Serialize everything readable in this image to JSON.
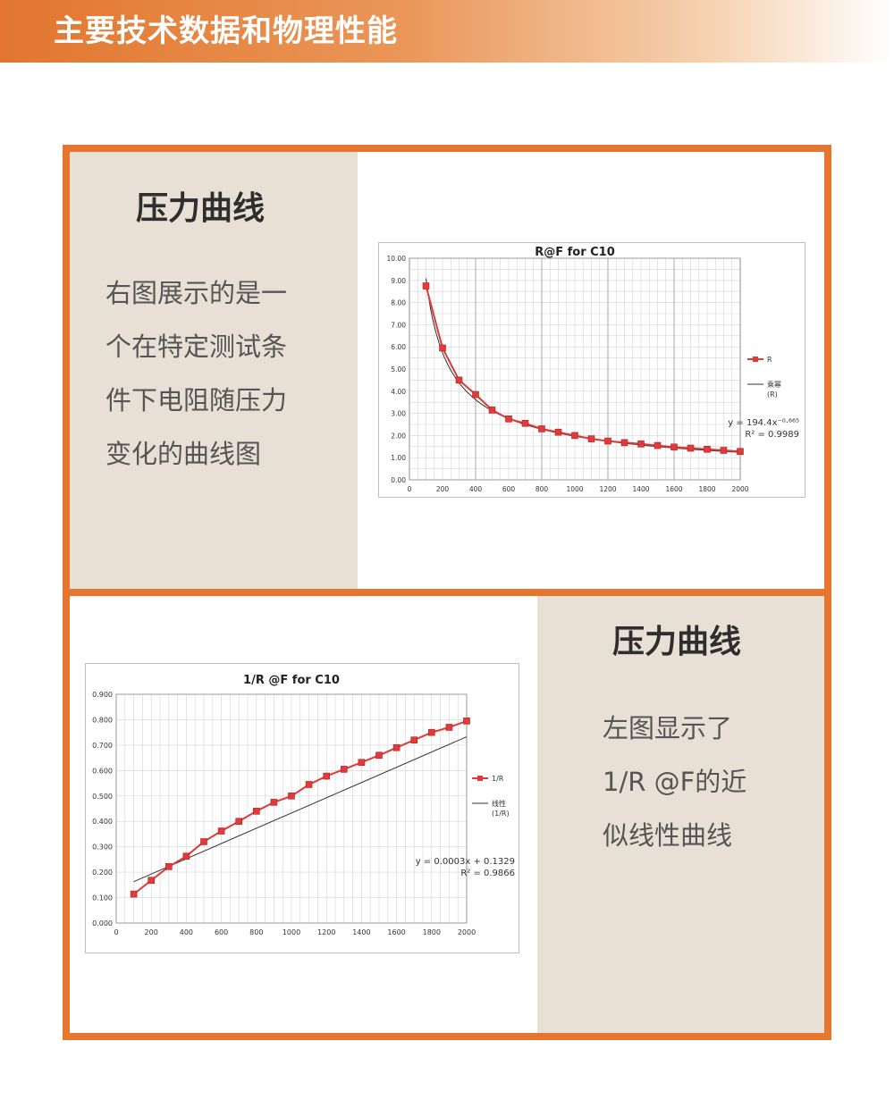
{
  "header": {
    "title": "主要技术数据和物理性能"
  },
  "section1": {
    "title": "压力曲线",
    "lines": [
      "右图展示的是一",
      "个在特定测试条",
      "件下电阻随压力",
      "变化的曲线图"
    ]
  },
  "section2": {
    "title": "压力曲线",
    "lines": [
      "左图显示了",
      "1/R @F的近",
      "似线性曲线"
    ]
  },
  "colors": {
    "accent": "#e6762e",
    "panel": "#e8e0d5",
    "series": "#e03a3a"
  },
  "chart_data": [
    {
      "type": "line",
      "title": "R@F  for C10",
      "x": [
        100,
        200,
        300,
        400,
        500,
        600,
        700,
        800,
        900,
        1000,
        1100,
        1200,
        1300,
        1400,
        1500,
        1600,
        1700,
        1800,
        1900,
        2000
      ],
      "series": [
        {
          "name": "R",
          "values": [
            8.75,
            5.95,
            4.5,
            3.85,
            3.15,
            2.75,
            2.55,
            2.3,
            2.15,
            2.0,
            1.85,
            1.75,
            1.68,
            1.62,
            1.55,
            1.48,
            1.43,
            1.38,
            1.33,
            1.28
          ]
        },
        {
          "name": "乘幂 (R)",
          "type": "power",
          "a": 194.4,
          "b": -0.665
        }
      ],
      "trendline_label": [
        "y = 194.4x⁻⁰·⁶⁶⁵",
        "R² = 0.9989"
      ],
      "xlim": [
        0,
        2000
      ],
      "ylim": [
        0,
        10
      ],
      "xticks": [
        "0",
        "200",
        "400",
        "600",
        "800",
        "1000",
        "1200",
        "1400",
        "1600",
        "1800",
        "2000"
      ],
      "yticks": [
        "0.00",
        "1.00",
        "2.00",
        "3.00",
        "4.00",
        "5.00",
        "6.00",
        "7.00",
        "8.00",
        "9.00",
        "10.00"
      ],
      "grid": true,
      "legend": "right"
    },
    {
      "type": "line",
      "title": "1/R @F for C10",
      "x": [
        100,
        200,
        300,
        400,
        500,
        600,
        700,
        800,
        900,
        1000,
        1100,
        1200,
        1300,
        1400,
        1500,
        1600,
        1700,
        1800,
        1900,
        2000
      ],
      "series": [
        {
          "name": "1/R",
          "values": [
            0.114,
            0.168,
            0.222,
            0.263,
            0.32,
            0.362,
            0.4,
            0.44,
            0.475,
            0.5,
            0.545,
            0.578,
            0.605,
            0.632,
            0.66,
            0.69,
            0.72,
            0.75,
            0.77,
            0.795
          ]
        },
        {
          "name": "线性 (1/R)",
          "type": "linear",
          "slope": 0.0003,
          "intercept": 0.1329
        }
      ],
      "trendline_label": [
        "y = 0.0003x + 0.1329",
        "R² = 0.9866"
      ],
      "xlim": [
        0,
        2000
      ],
      "ylim": [
        0,
        0.9
      ],
      "xticks": [
        "0",
        "200",
        "400",
        "600",
        "800",
        "1000",
        "1200",
        "1400",
        "1600",
        "1800",
        "2000"
      ],
      "yticks": [
        "0.000",
        "0.100",
        "0.200",
        "0.300",
        "0.400",
        "0.500",
        "0.600",
        "0.700",
        "0.800",
        "0.900"
      ],
      "grid": true,
      "legend": "right"
    }
  ]
}
